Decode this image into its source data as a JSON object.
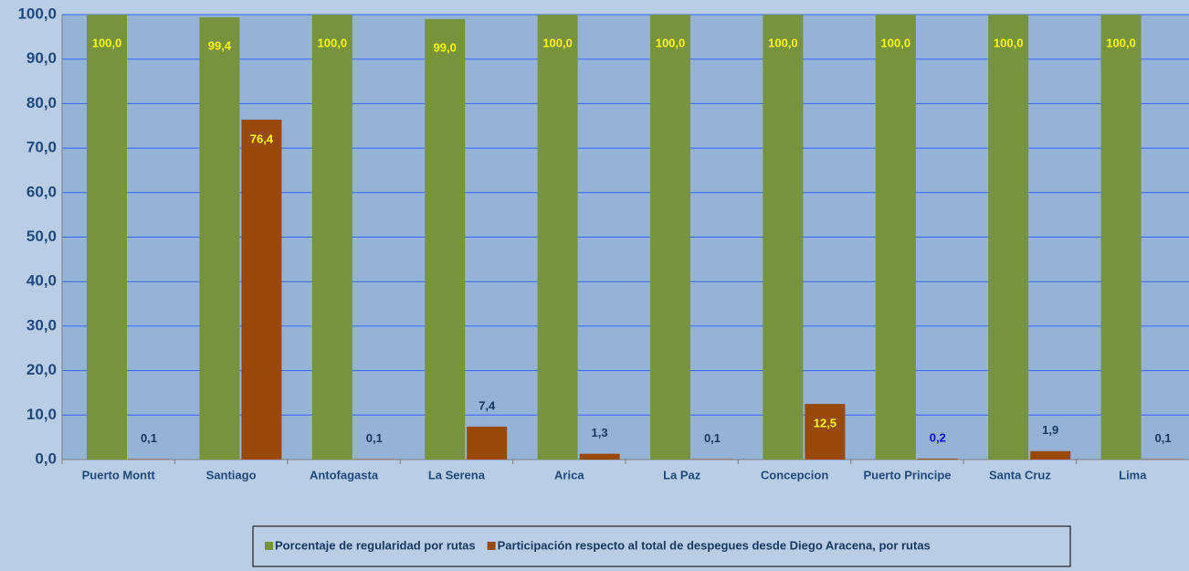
{
  "chart_data": {
    "type": "bar",
    "categories": [
      "Puerto Montt",
      "Santiago",
      "Antofagasta",
      "La Serena",
      "Arica",
      "La Paz",
      "Concepcion",
      "Puerto Principe",
      "Santa Cruz",
      "Lima"
    ],
    "series": [
      {
        "name": "Porcentaje de regularidad por rutas",
        "color": "#77933c",
        "values": [
          100.0,
          99.4,
          100.0,
          99.0,
          100.0,
          100.0,
          100.0,
          100.0,
          100.0,
          100.0
        ],
        "value_labels": [
          "100,0",
          "99,4",
          "100,0",
          "99,0",
          "100,0",
          "100,0",
          "100,0",
          "100,0",
          "100,0",
          "100,0"
        ]
      },
      {
        "name": "Participación respecto al total de despegues desde Diego Aracena, por rutas",
        "color": "#984807",
        "values": [
          0.1,
          76.4,
          0.1,
          7.4,
          1.3,
          0.1,
          12.5,
          0.2,
          1.9,
          0.1
        ],
        "value_labels": [
          "0,1",
          "76,4",
          "0,1",
          "7,4",
          "1,3",
          "0,1",
          "12,5",
          "0,2",
          "1,9",
          "0,1"
        ]
      }
    ],
    "ylim": [
      0,
      100
    ],
    "yticks": [
      {
        "value": 0,
        "label": "0,0"
      },
      {
        "value": 10,
        "label": "10,0"
      },
      {
        "value": 20,
        "label": "20,0"
      },
      {
        "value": 30,
        "label": "30,0"
      },
      {
        "value": 40,
        "label": "40,0"
      },
      {
        "value": 50,
        "label": "50,0"
      },
      {
        "value": 60,
        "label": "60,0"
      },
      {
        "value": 70,
        "label": "70,0"
      },
      {
        "value": 80,
        "label": "80,0"
      },
      {
        "value": 90,
        "label": "90,0"
      },
      {
        "value": 100,
        "label": "100,0"
      }
    ],
    "grid": true,
    "legend": "bottom"
  }
}
